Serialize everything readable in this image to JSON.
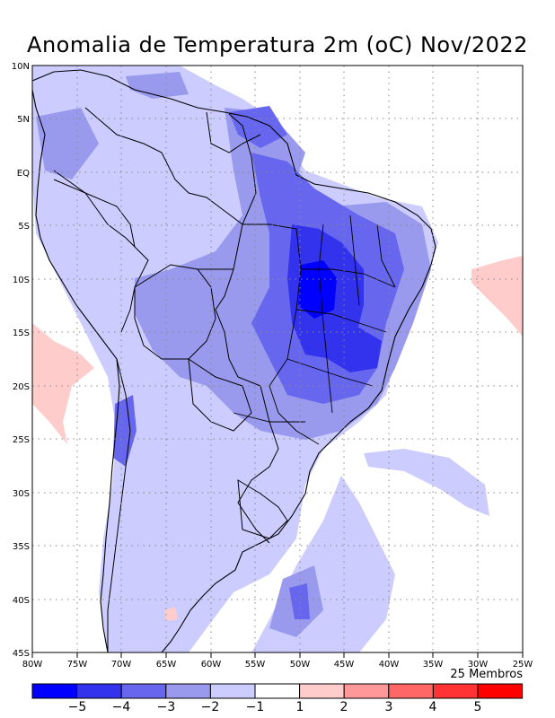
{
  "title": "Anomalia de Temperatura 2m (oC) Nov/2022",
  "members": "25 Membros",
  "map": {
    "lon_range": [
      -80,
      -25
    ],
    "lat_range": [
      -45,
      10
    ],
    "x_ticks": [
      "80W",
      "75W",
      "70W",
      "65W",
      "60W",
      "55W",
      "50W",
      "45W",
      "40W",
      "35W",
      "30W",
      "25W"
    ],
    "y_ticks": [
      "10N",
      "5N",
      "EQ",
      "5S",
      "10S",
      "15S",
      "20S",
      "25S",
      "30S",
      "35S",
      "40S",
      "45S"
    ]
  },
  "colorbar": {
    "colors": [
      "#0000ff",
      "#3333ee",
      "#6666ee",
      "#9999ee",
      "#ccccff",
      "#ffffff",
      "#ffcccc",
      "#ff9999",
      "#ff6666",
      "#ff3333",
      "#ff0000"
    ],
    "labels": [
      "−5",
      "−4",
      "−3",
      "−2",
      "−1",
      "1",
      "2",
      "3",
      "4",
      "5"
    ]
  },
  "palette": {
    "neg1": "#ccccff",
    "neg2": "#9999ee",
    "neg3": "#6666ee",
    "neg4": "#3333ee",
    "neg5": "#0000ff",
    "pos1": "#ffcccc"
  }
}
